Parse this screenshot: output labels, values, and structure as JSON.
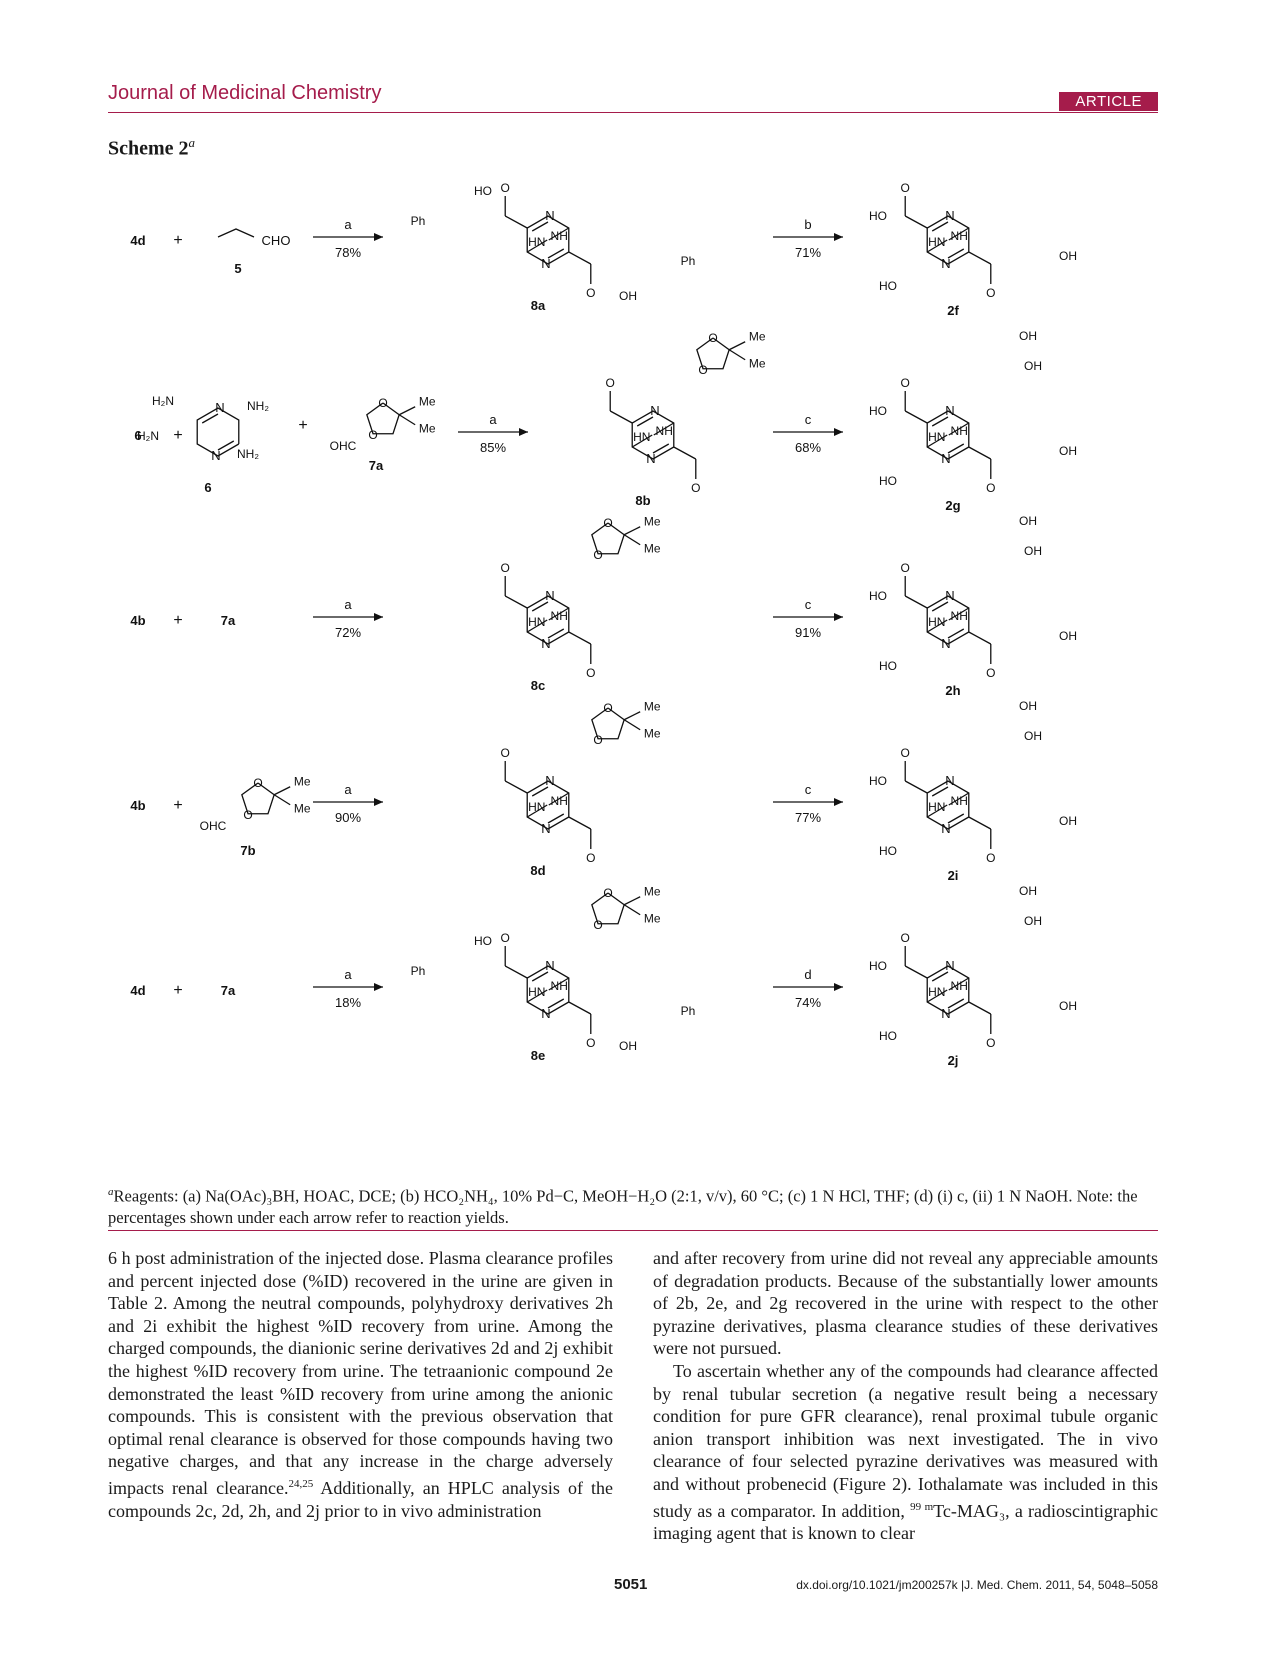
{
  "header": {
    "journal": "Journal of Medicinal Chemistry",
    "badge": "ARTICLE"
  },
  "scheme": {
    "title": "Scheme 2",
    "title_sup": "a",
    "rows": [
      {
        "left": [
          "4d",
          "+",
          "5"
        ],
        "aldehyde": "CHO",
        "step1": "a",
        "yield1": "78%",
        "mid": "8a",
        "step2": "b",
        "yield2": "71%",
        "product": "2f"
      },
      {
        "left": [
          "6",
          "+",
          "7a"
        ],
        "aldehyde": "OHC",
        "step1": "a",
        "yield1": "85%",
        "mid": "8b",
        "step2": "c",
        "yield2": "68%",
        "product": "2g"
      },
      {
        "left": [
          "4b",
          "+",
          "7a"
        ],
        "step1": "a",
        "yield1": "72%",
        "mid": "8c",
        "step2": "c",
        "yield2": "91%",
        "product": "2h"
      },
      {
        "left": [
          "4b",
          "+",
          "7b"
        ],
        "aldehyde": "OHC",
        "step1": "a",
        "yield1": "90%",
        "mid": "8d",
        "step2": "c",
        "yield2": "77%",
        "product": "2i"
      },
      {
        "left": [
          "4d",
          "+",
          "7a"
        ],
        "step1": "a",
        "yield1": "18%",
        "mid": "8e",
        "step2": "d",
        "yield2": "74%",
        "product": "2j"
      }
    ],
    "atoms": {
      "N": "N",
      "NH": "NH",
      "HN": "HN",
      "H": "H",
      "O": "O",
      "HO": "HO",
      "OH": "OH",
      "Me": "Me",
      "Ph": "Ph",
      "NH2": "NH₂",
      "H2N": "H₂N"
    }
  },
  "footnote": {
    "sup": "a",
    "text": "Reagents: (a) Na(OAc)₃BH, HOAC, DCE; (b) HCO₂NH₄, 10% Pd−C, MeOH−H₂O (2:1, v/v), 60 °C; (c) 1 N HCl, THF; (d) (i) c, (ii) 1 N NaOH. Note: the percentages shown under each arrow refer to reaction yields."
  },
  "body": {
    "left": [
      "6 h post administration of the injected dose. Plasma clearance profiles and percent injected dose (%ID) recovered in the urine are given in Table 2. Among the neutral compounds, polyhydroxy derivatives 2h and 2i exhibit the highest %ID recovery from urine. Among the charged compounds, the dianionic serine derivatives 2d and 2j exhibit the highest %ID recovery from urine. The tetraanionic compound 2e demonstrated the least %ID recovery from urine among the anionic compounds. This is consistent with the previous observation that optimal renal clearance is observed for those compounds having two negative charges, and that any increase in the charge adversely impacts renal clearance.",
      "24,25",
      " Additionally, an HPLC analysis of the compounds 2c, 2d, 2h, and 2j prior to in vivo administration"
    ],
    "right_p1": "and after recovery from urine did not reveal any appreciable amounts of degradation products. Because of the substantially lower amounts of 2b, 2e, and 2g recovered in the urine with respect to the other pyrazine derivatives, plasma clearance studies of these derivatives were not pursued.",
    "right_p2a": "To ascertain whether any of the compounds had clearance affected by renal tubular secretion (a negative result being a necessary condition for pure GFR clearance), renal proximal tubule organic anion transport inhibition was next investigated. The in vivo clearance of four selected pyrazine derivatives was measured with and without probenecid (Figure 2). Iothalamate was included in this study as a comparator. In addition, ",
    "right_p2_sup": "99 m",
    "right_p2b": "Tc-MAG₃, a radioscintigraphic imaging agent that is known to clear"
  },
  "footer": {
    "page": "5051",
    "doi": "dx.doi.org/10.1021/jm200257k |J. Med. Chem. 2011, 54, 5048–5058"
  }
}
